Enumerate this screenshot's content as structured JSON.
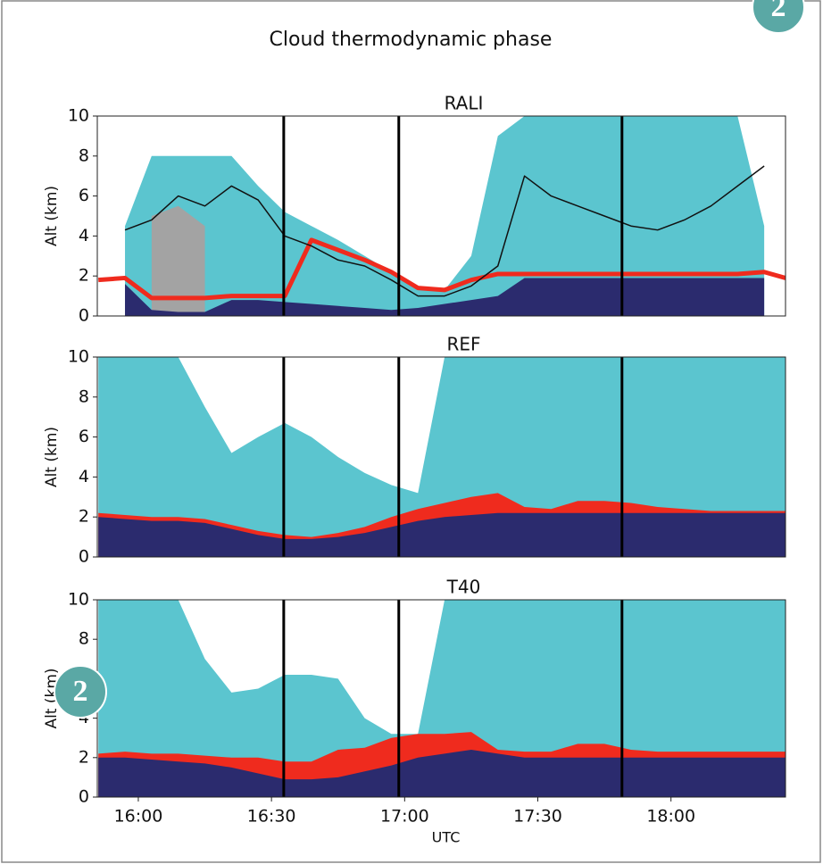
{
  "title": "Cloud thermodynamic phase",
  "badges": [
    "2",
    "2"
  ],
  "chart_data": [
    {
      "type": "area",
      "title": "RALI",
      "ylabel": "Alt (km)",
      "xlim": [
        15.846,
        18.43
      ],
      "ylim": [
        0,
        10
      ],
      "yticks": [
        0,
        2,
        4,
        6,
        8,
        10
      ],
      "vlines": [
        16.546,
        16.978,
        17.816
      ],
      "x": [
        15.85,
        15.95,
        16.05,
        16.15,
        16.25,
        16.35,
        16.45,
        16.55,
        16.65,
        16.75,
        16.85,
        16.95,
        17.05,
        17.15,
        17.25,
        17.35,
        17.45,
        17.55,
        17.65,
        17.75,
        17.85,
        17.95,
        18.05,
        18.15,
        18.25,
        18.35,
        18.43
      ],
      "series": [
        {
          "color": "#5bc5cf",
          "style": "area",
          "values": [
            null,
            4.5,
            8.0,
            8.0,
            8.0,
            8.0,
            6.5,
            5.2,
            4.5,
            3.8,
            3.0,
            2.2,
            1.5,
            1.3,
            3.0,
            9.0,
            10,
            10,
            10,
            10,
            10,
            10,
            10,
            10,
            10,
            4.5,
            null
          ]
        },
        {
          "color": "#a3a3a3",
          "style": "area",
          "values": [
            null,
            null,
            5.0,
            5.5,
            4.5,
            null,
            null,
            null,
            null,
            null,
            null,
            null,
            null,
            null,
            null,
            null,
            null,
            null,
            null,
            null,
            null,
            null,
            null,
            null,
            null,
            null,
            null
          ]
        },
        {
          "color": "#2b2b6e",
          "style": "area",
          "values": [
            null,
            1.6,
            0.3,
            0.2,
            0.2,
            0.8,
            0.8,
            0.7,
            0.6,
            0.5,
            0.4,
            0.3,
            0.4,
            0.6,
            0.8,
            1.0,
            1.9,
            1.9,
            1.9,
            1.9,
            1.9,
            1.9,
            1.9,
            1.9,
            1.9,
            1.9,
            null
          ]
        },
        {
          "color": "#ef2b1e",
          "style": "line",
          "line_width": 5,
          "values": [
            1.8,
            1.9,
            0.9,
            0.9,
            0.9,
            1.0,
            1.0,
            1.0,
            3.8,
            3.3,
            2.8,
            2.2,
            1.4,
            1.3,
            1.8,
            2.1,
            2.1,
            2.1,
            2.1,
            2.1,
            2.1,
            2.1,
            2.1,
            2.1,
            2.1,
            2.2,
            1.9
          ]
        },
        {
          "color": "#111111",
          "style": "line",
          "line_width": 1.5,
          "values": [
            null,
            4.3,
            4.8,
            6.0,
            5.5,
            6.5,
            5.8,
            4.0,
            3.5,
            2.8,
            2.5,
            1.8,
            1.0,
            1.0,
            1.5,
            2.5,
            7.0,
            6.0,
            5.5,
            5.0,
            4.5,
            4.3,
            4.8,
            5.5,
            6.5,
            7.5,
            null
          ]
        }
      ]
    },
    {
      "type": "area",
      "title": "REF",
      "ylabel": "Alt (km)",
      "xlim": [
        15.846,
        18.43
      ],
      "ylim": [
        0,
        10
      ],
      "yticks": [
        0,
        2,
        4,
        6,
        8,
        10
      ],
      "vlines": [
        16.546,
        16.978,
        17.816
      ],
      "x": [
        15.85,
        15.95,
        16.05,
        16.15,
        16.25,
        16.35,
        16.45,
        16.55,
        16.65,
        16.75,
        16.85,
        16.95,
        17.05,
        17.15,
        17.25,
        17.35,
        17.45,
        17.55,
        17.65,
        17.75,
        17.85,
        17.95,
        18.05,
        18.15,
        18.25,
        18.35,
        18.43
      ],
      "series": [
        {
          "color": "#5bc5cf",
          "style": "area",
          "values": [
            10,
            10,
            10,
            10,
            7.5,
            5.2,
            6.0,
            6.7,
            6.0,
            5.0,
            4.2,
            3.6,
            3.2,
            10,
            10,
            10,
            10,
            10,
            10,
            10,
            10,
            10,
            10,
            10,
            10,
            10,
            10
          ]
        },
        {
          "color": "#ef2b1e",
          "style": "area",
          "values": [
            2.2,
            2.1,
            2.0,
            2.0,
            1.9,
            1.6,
            1.3,
            1.1,
            1.0,
            1.2,
            1.5,
            2.0,
            2.4,
            2.7,
            3.0,
            3.2,
            2.5,
            2.4,
            2.8,
            2.8,
            2.7,
            2.5,
            2.4,
            2.3,
            2.3,
            2.3,
            2.3
          ]
        },
        {
          "color": "#2b2b6e",
          "style": "area",
          "values": [
            2.0,
            1.9,
            1.8,
            1.8,
            1.7,
            1.4,
            1.1,
            0.9,
            0.9,
            1.0,
            1.2,
            1.5,
            1.8,
            2.0,
            2.1,
            2.2,
            2.2,
            2.2,
            2.2,
            2.2,
            2.2,
            2.2,
            2.2,
            2.2,
            2.2,
            2.2,
            2.2
          ]
        }
      ]
    },
    {
      "type": "area",
      "title": "T40",
      "ylabel": "Alt (km)",
      "xlabel": "UTC",
      "xlim": [
        15.846,
        18.43
      ],
      "ylim": [
        0,
        10
      ],
      "yticks": [
        0,
        2,
        4,
        6,
        8,
        10
      ],
      "xticks": [
        {
          "value": 16,
          "label": "16:00"
        },
        {
          "value": 16.5,
          "label": "16:30"
        },
        {
          "value": 17,
          "label": "17:00"
        },
        {
          "value": 17.5,
          "label": "17:30"
        },
        {
          "value": 18,
          "label": "18:00"
        }
      ],
      "vlines": [
        16.546,
        16.978,
        17.816
      ],
      "x": [
        15.85,
        15.95,
        16.05,
        16.15,
        16.25,
        16.35,
        16.45,
        16.55,
        16.65,
        16.75,
        16.85,
        16.95,
        17.05,
        17.15,
        17.25,
        17.35,
        17.45,
        17.55,
        17.65,
        17.75,
        17.85,
        17.95,
        18.05,
        18.15,
        18.25,
        18.35,
        18.43
      ],
      "series": [
        {
          "color": "#5bc5cf",
          "style": "area",
          "values": [
            10,
            10,
            10,
            10,
            7.0,
            5.3,
            5.5,
            6.2,
            6.2,
            6.0,
            4.0,
            3.2,
            3.2,
            10,
            10,
            10,
            10,
            10,
            10,
            10,
            10,
            10,
            10,
            10,
            10,
            10,
            10
          ]
        },
        {
          "color": "#ef2b1e",
          "style": "area",
          "values": [
            2.2,
            2.3,
            2.2,
            2.2,
            2.1,
            2.0,
            2.0,
            1.8,
            1.8,
            2.4,
            2.5,
            3.0,
            3.2,
            3.2,
            3.3,
            2.4,
            2.3,
            2.3,
            2.7,
            2.7,
            2.4,
            2.3,
            2.3,
            2.3,
            2.3,
            2.3,
            2.3
          ]
        },
        {
          "color": "#2b2b6e",
          "style": "area",
          "values": [
            2.0,
            2.0,
            1.9,
            1.8,
            1.7,
            1.5,
            1.2,
            0.9,
            0.9,
            1.0,
            1.3,
            1.6,
            2.0,
            2.2,
            2.4,
            2.2,
            2.0,
            2.0,
            2.0,
            2.0,
            2.0,
            2.0,
            2.0,
            2.0,
            2.0,
            2.0,
            2.0
          ]
        }
      ]
    }
  ]
}
